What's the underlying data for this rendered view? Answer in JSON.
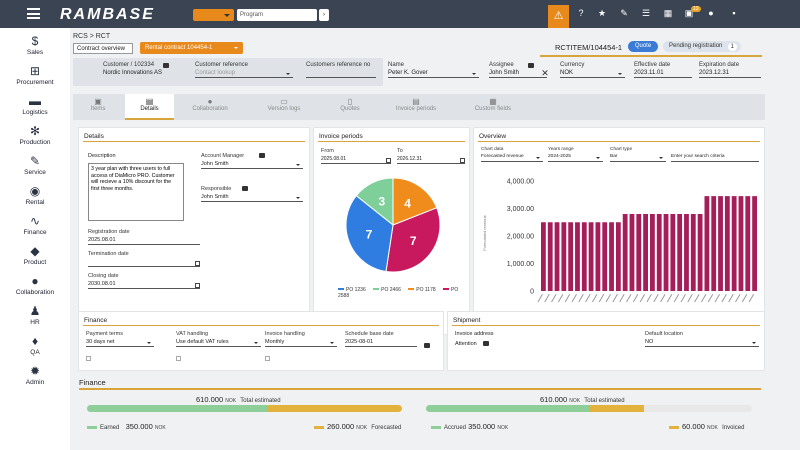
{
  "topbar": {
    "logo": "RAMBASE",
    "program_placeholder": "Program",
    "go_label": "›",
    "notif_count": "13",
    "colors": {
      "bar": "#3b4453",
      "accent": "#e8891b"
    }
  },
  "sidebar": [
    {
      "label": "Sales",
      "icon": "money-bag-icon"
    },
    {
      "label": "Procurement",
      "icon": "cart-icon"
    },
    {
      "label": "Logistics",
      "icon": "truck-icon"
    },
    {
      "label": "Production",
      "icon": "gears-icon"
    },
    {
      "label": "Service",
      "icon": "wrench-icon"
    },
    {
      "label": "Rental",
      "icon": "rental-icon"
    },
    {
      "label": "Finance",
      "icon": "chart-line-icon"
    },
    {
      "label": "Product",
      "icon": "box-icon"
    },
    {
      "label": "Collaboration",
      "icon": "chat-icon"
    },
    {
      "label": "HR",
      "icon": "person-icon"
    },
    {
      "label": "QA",
      "icon": "thumbs-up-icon"
    },
    {
      "label": "Admin",
      "icon": "gear-icon"
    }
  ],
  "breadcrumb": "RCS  > RCT",
  "tabs_top": {
    "overview": "Contract overview",
    "rental": "Rental contract  104454-1"
  },
  "doc_id": "RCTITEM/104454-1",
  "status": {
    "quote": "Quote",
    "pending": "Pending registration",
    "pending_count": "1"
  },
  "header": {
    "customer_label": "Customer / 102334",
    "customer_value": "Nordic Innovations AS",
    "custref_label": "Customer reference",
    "custref_value": "Contact lookup",
    "custrefno_label": "Customers reference no",
    "name_label": "Name",
    "name_value": "Peter K. Gover",
    "assignee_label": "Assignee",
    "assignee_value": "John Smith",
    "currency_label": "Currency",
    "currency_value": "NOK",
    "eff_label": "Effective date",
    "eff_value": "2023.11.01",
    "exp_label": "Expiration date",
    "exp_value": "2023.12.31"
  },
  "tabs": [
    "Items",
    "Details",
    "Collaboration",
    "Version logs",
    "Quotes",
    "Invoice periods",
    "Custom fields"
  ],
  "details": {
    "title": "Details",
    "desc_label": "Description",
    "desc_value": "3 year plan with three users to full access of DiaMicro PRO. Customer will recieve a 10% discount for the first three months.",
    "am_label": "Account Manager",
    "am_value": "John Smith",
    "resp_label": "Responsible",
    "resp_value": "John Smith",
    "reg_label": "Registration date",
    "reg_value": "2025.08.01",
    "term_label": "Termination date",
    "term_value": "",
    "close_label": "Closing date",
    "close_value": "2030.08.01"
  },
  "invoice": {
    "title": "Invoice periods",
    "from_label": "From",
    "from_value": "2025.08.01",
    "to_label": "To",
    "to_value": "2026.12.31"
  },
  "pie": {
    "type": "pie",
    "values": [
      3,
      4,
      7,
      7
    ],
    "labels": [
      "PO 1236",
      "PO 2466",
      "PO 1178",
      "PO 2588"
    ],
    "colors": [
      "#7ecf9a",
      "#f08c1c",
      "#c8195e",
      "#2f7de1"
    ]
  },
  "overview": {
    "title": "Overview",
    "cd_label": "Chart data",
    "cd_value": "Forecasted revenue",
    "yr_label": "Years range",
    "yr_value": "2024-2025",
    "ct_label": "Chart type",
    "ct_value": "Bar",
    "search_placeholder": "Enter your search criteria"
  },
  "chart_data": {
    "type": "bar",
    "ylabel": "Forecasted revenue",
    "yticks": [
      "0",
      "1,000.00",
      "2,000.00",
      "3,000.00",
      "4,000.00"
    ],
    "ylim": [
      0,
      4000
    ],
    "values": [
      2500,
      2500,
      2500,
      2500,
      2500,
      2500,
      2500,
      2500,
      2500,
      2500,
      2500,
      2500,
      2800,
      2800,
      2800,
      2800,
      2800,
      2800,
      2800,
      2800,
      2800,
      2800,
      2800,
      2800,
      3450,
      3450,
      3450,
      3450,
      3450,
      3450,
      3450,
      3450
    ],
    "color": "#a51e5a"
  },
  "finance_panel": {
    "title": "Finance",
    "pt_label": "Payment terms",
    "pt_value": "30 days net",
    "vat_label": "VAT handling",
    "vat_value": "Use default VAT rules",
    "ih_label": "Invoice handling",
    "ih_value": "Monthly",
    "sb_label": "Schedule base date",
    "sb_value": "2025-08-01"
  },
  "shipment": {
    "title": "Shipment",
    "ia_label": "Invoice address",
    "att_label": "Attention",
    "dl_label": "Default location",
    "dl_value": "NO"
  },
  "finance_bars": {
    "title": "Finance",
    "left": {
      "total": "610.000",
      "unit": "NOK",
      "total_label": "Total estimated",
      "earned_label": "Earned",
      "earned": "350.000",
      "forecast": "260.000",
      "forecast_label": "Forecasted",
      "fill_green": 0.57,
      "fill_orange": 0.43
    },
    "right": {
      "total": "610.000",
      "unit": "NOK",
      "total_label": "Total estimated",
      "accrued_label": "Accrued",
      "accrued": "350.000",
      "invoiced": "60.000",
      "invoiced_label": "Invoiced",
      "fill_green": 0.5,
      "fill_orange": 0.17
    },
    "colors": {
      "green": "#8ecf99",
      "orange": "#e3b23c"
    }
  }
}
